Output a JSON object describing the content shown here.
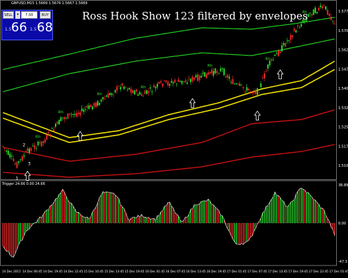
{
  "chart_info": {
    "symbol_line": "GBPUSD,M15 1.5669 1.5676 1.5667 1.5669"
  },
  "trade_panel": {
    "sell_label": "SELL",
    "buy_label": "BUY",
    "lot_value": "7.00",
    "bid_prefix": "1.5",
    "bid_big": "66",
    "ask_prefix": "1.5",
    "ask_big": "68"
  },
  "title": "Ross Hook Show 123 filtered by envelopes",
  "indicator": {
    "label": "Trigger 24.66 0.00 24.66",
    "axis_labels": [
      "38.89",
      "0.00",
      "-47.3"
    ]
  },
  "price_axis": [
    "1.5776",
    "1.5701",
    "1.5626",
    "1.5476",
    "1.5401",
    "1.5326",
    "1.5251",
    "1.5176",
    "1.5101"
  ],
  "time_axis": [
    "14 Dec 2015",
    "14 Dec 06:45",
    "14 Dec 19:45",
    "14 Dec 22:45",
    "15 Dec 10:45",
    "15 Dec 13:45",
    "15 Dec 19:45",
    "16 Dec 01:45",
    "16 Dec 07:45",
    "16 Dec 13:45",
    "16 Dec 19:45",
    "17 Dec 01:45",
    "17 Dec 07:45",
    "17 Dec 13:45",
    "17 Dec 19:45",
    "17 Dec 22:45",
    "17 Dec 01:45"
  ],
  "rh_markers": [
    {
      "label": "Rh",
      "i": 20
    },
    {
      "label": "Rh",
      "i": 33
    },
    {
      "label": "Rh",
      "i": 55
    },
    {
      "label": "Rh",
      "i": 80
    },
    {
      "label": "Rh",
      "i": 118
    },
    {
      "label": "Rh",
      "i": 151
    },
    {
      "label": "Rh",
      "i": 172
    }
  ],
  "pattern_labels": [
    {
      "label": "1",
      "i": 8
    },
    {
      "label": "2",
      "i": 12
    },
    {
      "label": "3",
      "i": 15
    }
  ],
  "arrows": [
    14,
    44,
    108,
    145,
    158
  ],
  "colors": {
    "up_candle": "#2ee62e",
    "down_candle": "#ff2b2b",
    "outer_envelope": "#22cc22",
    "inner_envelope": "#f0e000",
    "lower_envelope": "#cc1111",
    "histogram_pos": "#2ee62e",
    "histogram_neg": "#ff2b2b"
  }
}
